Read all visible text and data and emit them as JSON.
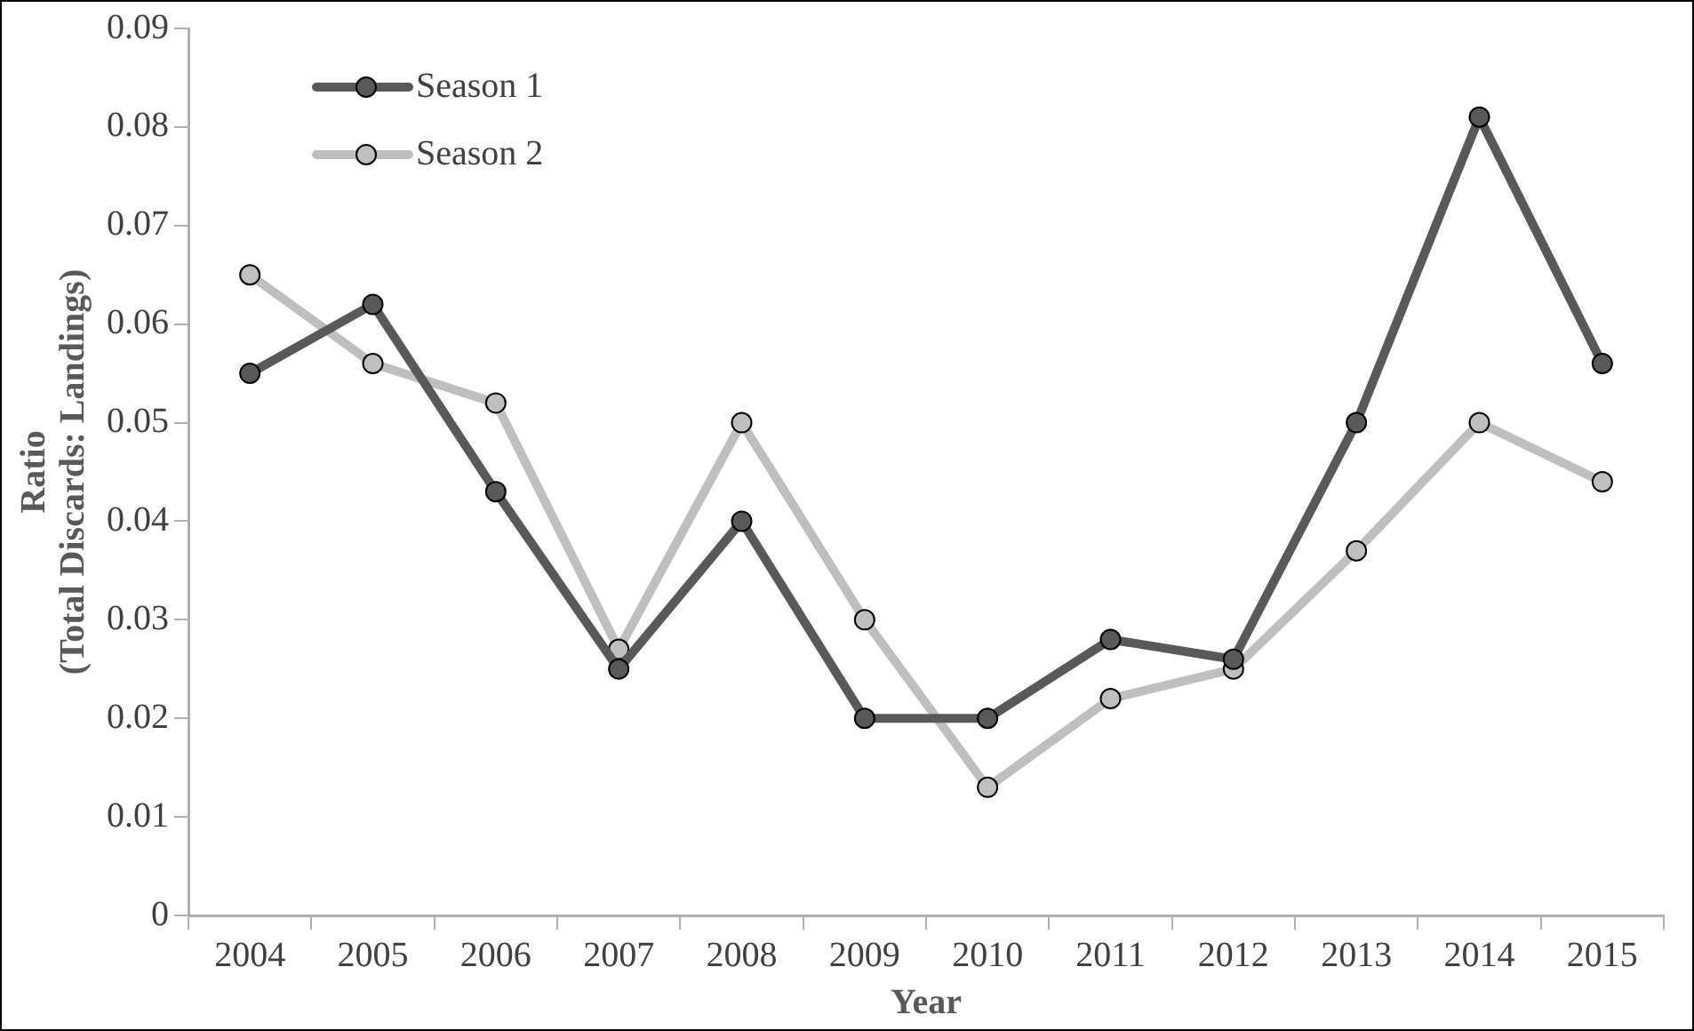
{
  "chart_data": {
    "type": "line",
    "xlabel": "Year",
    "ylabel": "Ratio\n(Total Discards: Landings)",
    "categories": [
      "2004",
      "2005",
      "2006",
      "2007",
      "2008",
      "2009",
      "2010",
      "2011",
      "2012",
      "2013",
      "2014",
      "2015"
    ],
    "series": [
      {
        "name": "Season 1",
        "color": "#595959",
        "values": [
          0.055,
          0.062,
          0.043,
          0.025,
          0.04,
          0.02,
          0.02,
          0.028,
          0.026,
          0.05,
          0.081,
          0.056
        ]
      },
      {
        "name": "Season 2",
        "color": "#bfbfbf",
        "values": [
          0.065,
          0.056,
          0.052,
          0.027,
          0.05,
          0.03,
          0.013,
          0.022,
          0.025,
          0.037,
          0.05,
          0.044
        ]
      }
    ],
    "ylim": [
      0,
      0.09
    ],
    "yticks": [
      0,
      0.01,
      0.02,
      0.03,
      0.04,
      0.05,
      0.06,
      0.07,
      0.08,
      0.09
    ],
    "grid": false,
    "legend": "top left",
    "marker": "circle",
    "line_style": "solid"
  }
}
